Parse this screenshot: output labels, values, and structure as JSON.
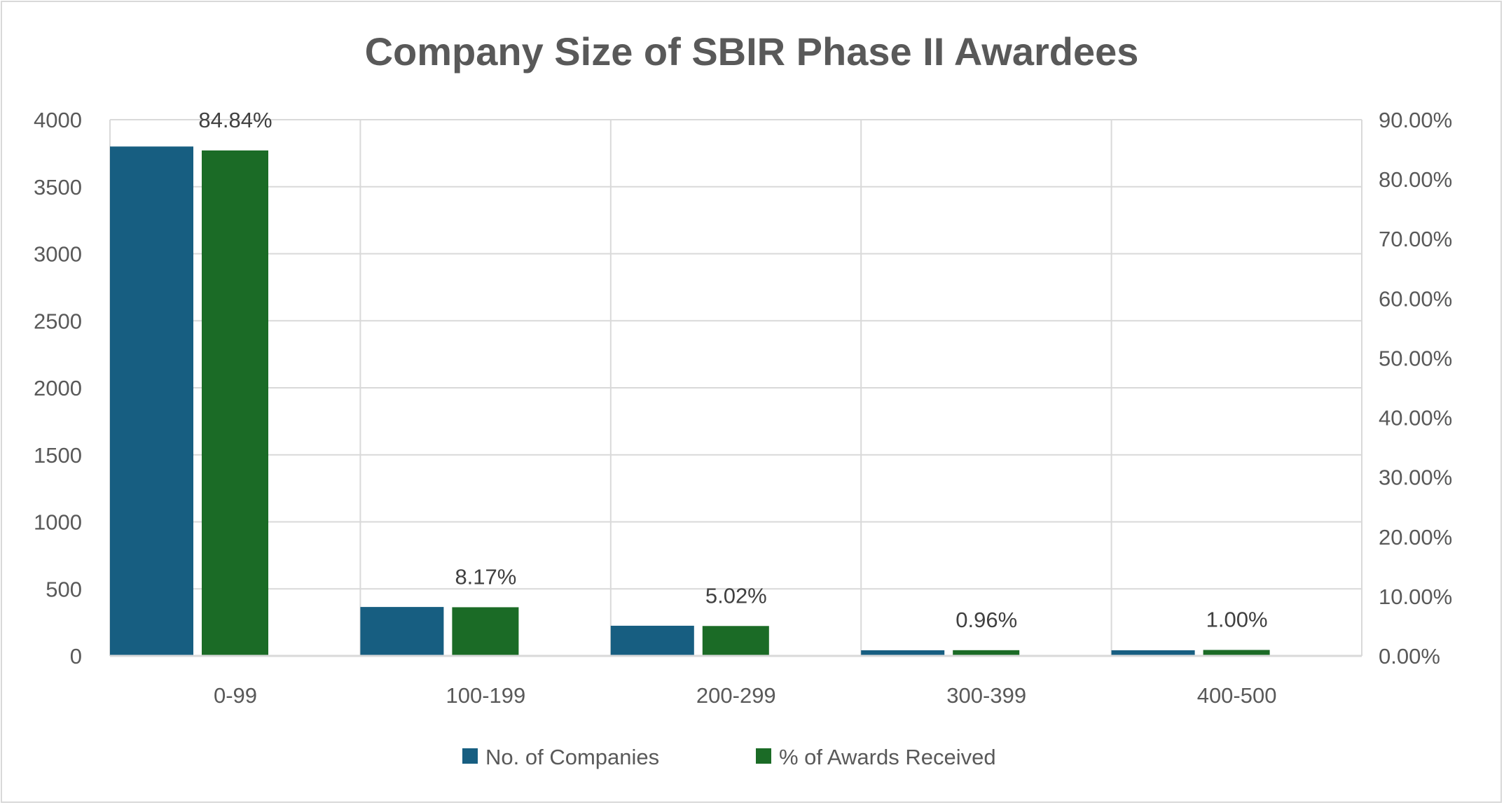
{
  "chart_data": {
    "type": "bar",
    "title": "Company Size of SBIR Phase II Awardees",
    "xlabel": "",
    "ylabel": "",
    "categories": [
      "0-99",
      "100-199",
      "200-299",
      "300-399",
      "400-500"
    ],
    "series": [
      {
        "name": "No. of Companies",
        "axis": "left",
        "color": "#175e81",
        "values": [
          3800,
          365,
          225,
          42,
          42
        ]
      },
      {
        "name": "% of Awards Received",
        "axis": "right",
        "color": "#1b6b26",
        "values": [
          84.84,
          8.17,
          5.02,
          0.96,
          1.0
        ],
        "data_labels": [
          "84.84%",
          "8.17%",
          "5.02%",
          "0.96%",
          "1.00%"
        ]
      }
    ],
    "ylim": [
      0,
      4000
    ],
    "y_ticks": [
      "0",
      "500",
      "1000",
      "1500",
      "2000",
      "2500",
      "3000",
      "3500",
      "4000"
    ],
    "y2lim": [
      0,
      90
    ],
    "y2_ticks": [
      "0.00%",
      "10.00%",
      "20.00%",
      "30.00%",
      "40.00%",
      "50.00%",
      "60.00%",
      "70.00%",
      "80.00%",
      "90.00%"
    ],
    "grid": true,
    "legend": "bottom"
  }
}
